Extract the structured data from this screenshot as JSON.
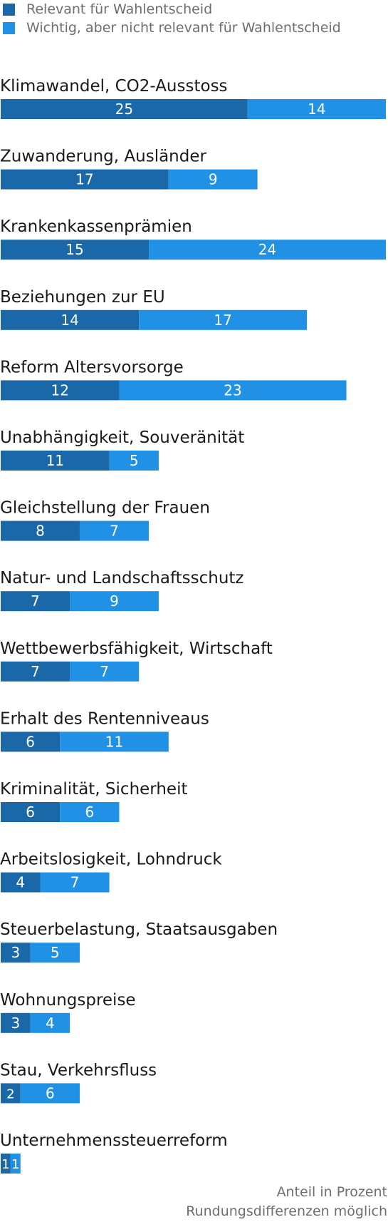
{
  "legend": {
    "items": [
      {
        "label": "Relevant für Wahlentscheid",
        "color": "#1a68a8"
      },
      {
        "label": "Wichtig, aber nicht relevant für Wahlentscheid",
        "color": "#2191e6"
      }
    ]
  },
  "footer": {
    "line1": "Anteil in Prozent",
    "line2": "Rundungsdifferenzen möglich"
  },
  "chart_data": {
    "type": "bar",
    "orientation": "horizontal",
    "stacked": true,
    "categories": [
      "Klimawandel, CO2-Ausstoss",
      "Zuwanderung, Ausländer",
      "Krankenkassenprämien",
      "Beziehungen zur EU",
      "Reform Altersvorsorge",
      "Unabhängigkeit, Souveränität",
      "Gleichstellung der Frauen",
      "Natur- und Landschaftsschutz",
      "Wettbewerbsfähigkeit, Wirtschaft",
      "Erhalt des Rentenniveaus",
      "Kriminalität, Sicherheit",
      "Arbeitslosigkeit, Lohndruck",
      "Steuerbelastung, Staatsausgaben",
      "Wohnungspreise",
      "Stau, Verkehrsfluss",
      "Unternehmenssteuerreform"
    ],
    "series": [
      {
        "name": "Relevant für Wahlentscheid",
        "color": "#1a68a8",
        "values": [
          25,
          17,
          15,
          14,
          12,
          11,
          8,
          7,
          7,
          6,
          6,
          4,
          3,
          3,
          2,
          1
        ]
      },
      {
        "name": "Wichtig, aber nicht relevant für Wahlentscheid",
        "color": "#2191e6",
        "values": [
          14,
          9,
          24,
          17,
          23,
          5,
          7,
          9,
          7,
          11,
          6,
          7,
          5,
          4,
          6,
          1
        ]
      }
    ],
    "xlim": [
      0,
      39
    ],
    "value_labels": true,
    "grid": false
  }
}
